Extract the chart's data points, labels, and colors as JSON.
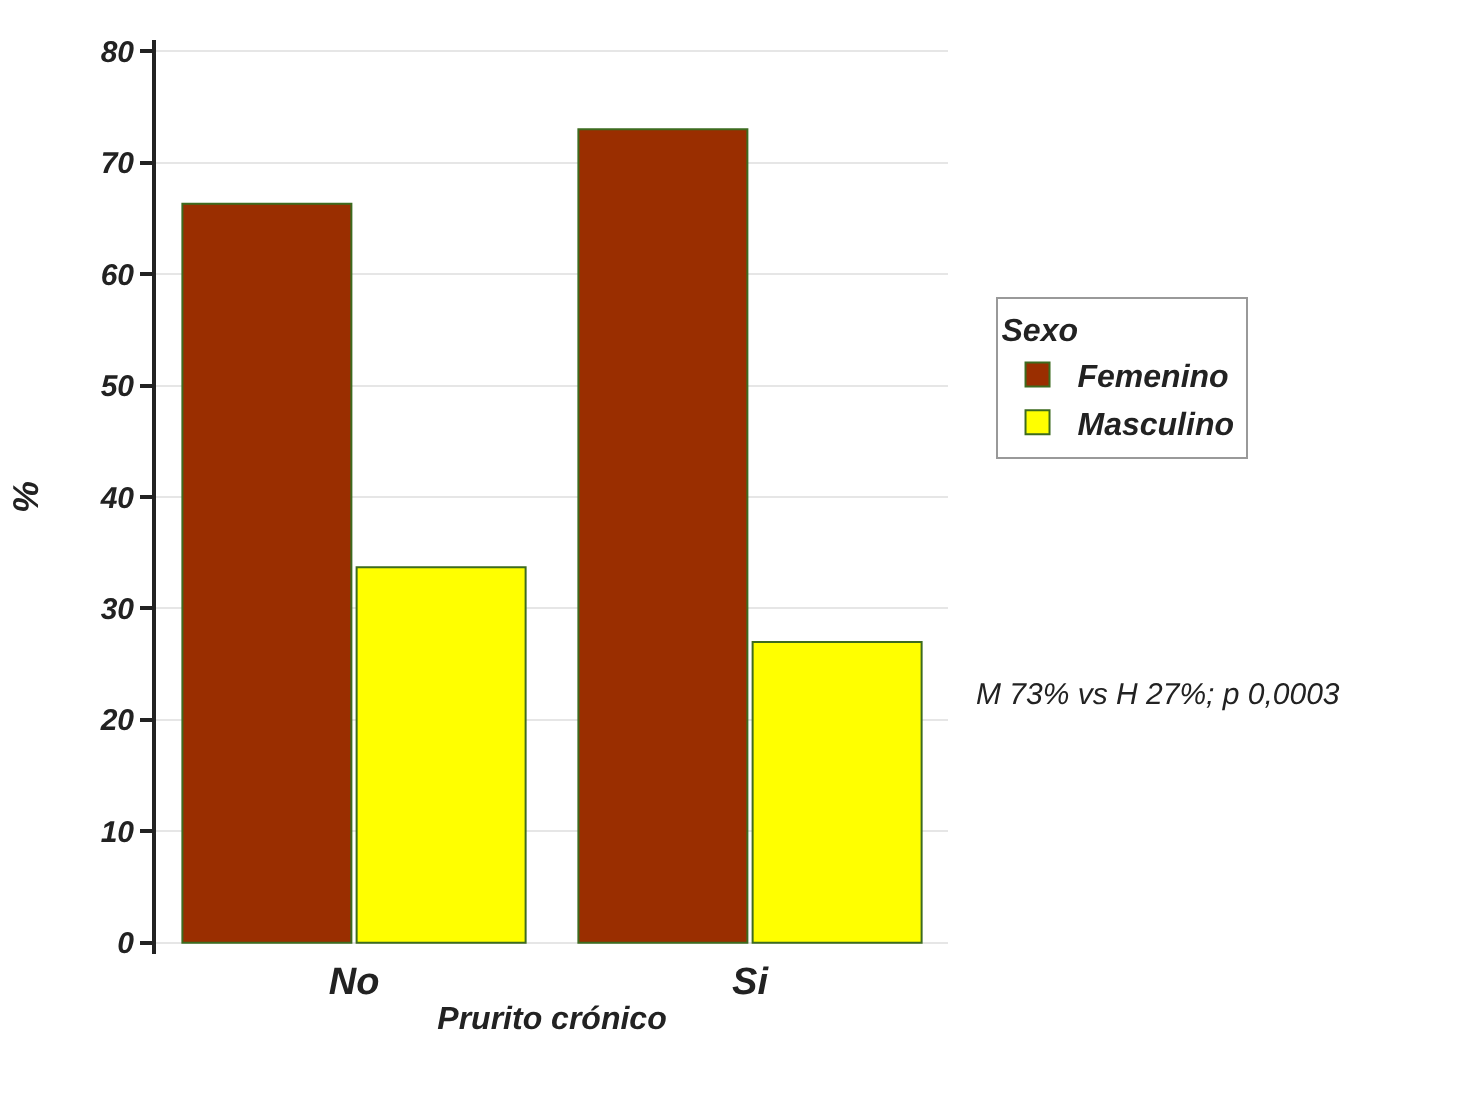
{
  "chart_data": {
    "type": "bar",
    "xlabel": "Prurito crónico",
    "ylabel": "%",
    "legend_title": "Sexo",
    "categories": [
      "No",
      "Si"
    ],
    "series": [
      {
        "name": "Femenino",
        "color": "#9a2e00",
        "values": [
          66.3,
          73.0
        ]
      },
      {
        "name": "Masculino",
        "color": "#ffff00",
        "values": [
          33.7,
          27.0
        ]
      }
    ],
    "ylim": [
      -1,
      81
    ],
    "yticks": [
      0,
      10,
      20,
      30,
      40,
      50,
      60,
      70,
      80
    ],
    "grid": "y",
    "legend": "right",
    "annotations": [
      "M 73% vs H 27%; p 0,0003"
    ]
  }
}
